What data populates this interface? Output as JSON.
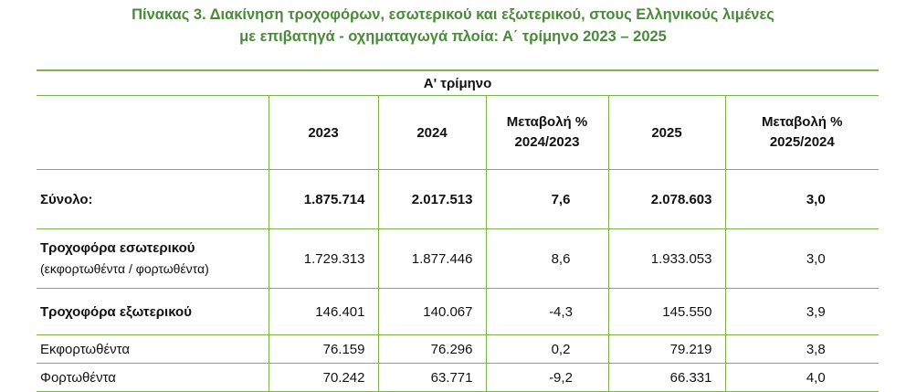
{
  "title": {
    "line1": "Πίνακας 3. Διακίνηση τροχοφόρων, εσωτερικού και εξωτερικού, στους Ελληνικούς λιμένες",
    "line2": "με επιβατηγά - οχηματαγωγά πλοία: Α΄ τρίμηνο 2023 – 2025"
  },
  "table": {
    "period": "Α' τρίμηνο",
    "headers": {
      "y2023": "2023",
      "y2024": "2024",
      "chg1_line1": "Μεταβολή %",
      "chg1_line2": "2024/2023",
      "y2025": "2025",
      "chg2_line1": "Μεταβολή %",
      "chg2_line2": "2025/2024"
    },
    "rows": [
      {
        "label": "Σύνολο:",
        "sublabel": "",
        "y2023": "1.875.714",
        "y2024": "2.017.513",
        "chg1": "7,6",
        "y2025": "2.078.603",
        "chg2": "3,0"
      },
      {
        "label": "Τροχοφόρα εσωτερικού",
        "sublabel": "(εκφορτωθέντα / φορτωθέντα)",
        "y2023": "1.729.313",
        "y2024": "1.877.446",
        "chg1": "8,6",
        "y2025": "1.933.053",
        "chg2": "3,0"
      },
      {
        "label": "Τροχοφόρα εξωτερικού",
        "sublabel": "",
        "y2023": "146.401",
        "y2024": "140.067",
        "chg1": "-4,3",
        "y2025": "145.550",
        "chg2": "3,9"
      },
      {
        "label": "Εκφορτωθέντα",
        "sublabel": "",
        "y2023": "76.159",
        "y2024": "76.296",
        "chg1": "0,2",
        "y2025": "79.219",
        "chg2": "3,8"
      },
      {
        "label": "Φορτωθέντα",
        "sublabel": "",
        "y2023": "70.242",
        "y2024": "63.771",
        "chg1": "-9,2",
        "y2025": "66.331",
        "chg2": "4,0"
      }
    ]
  }
}
